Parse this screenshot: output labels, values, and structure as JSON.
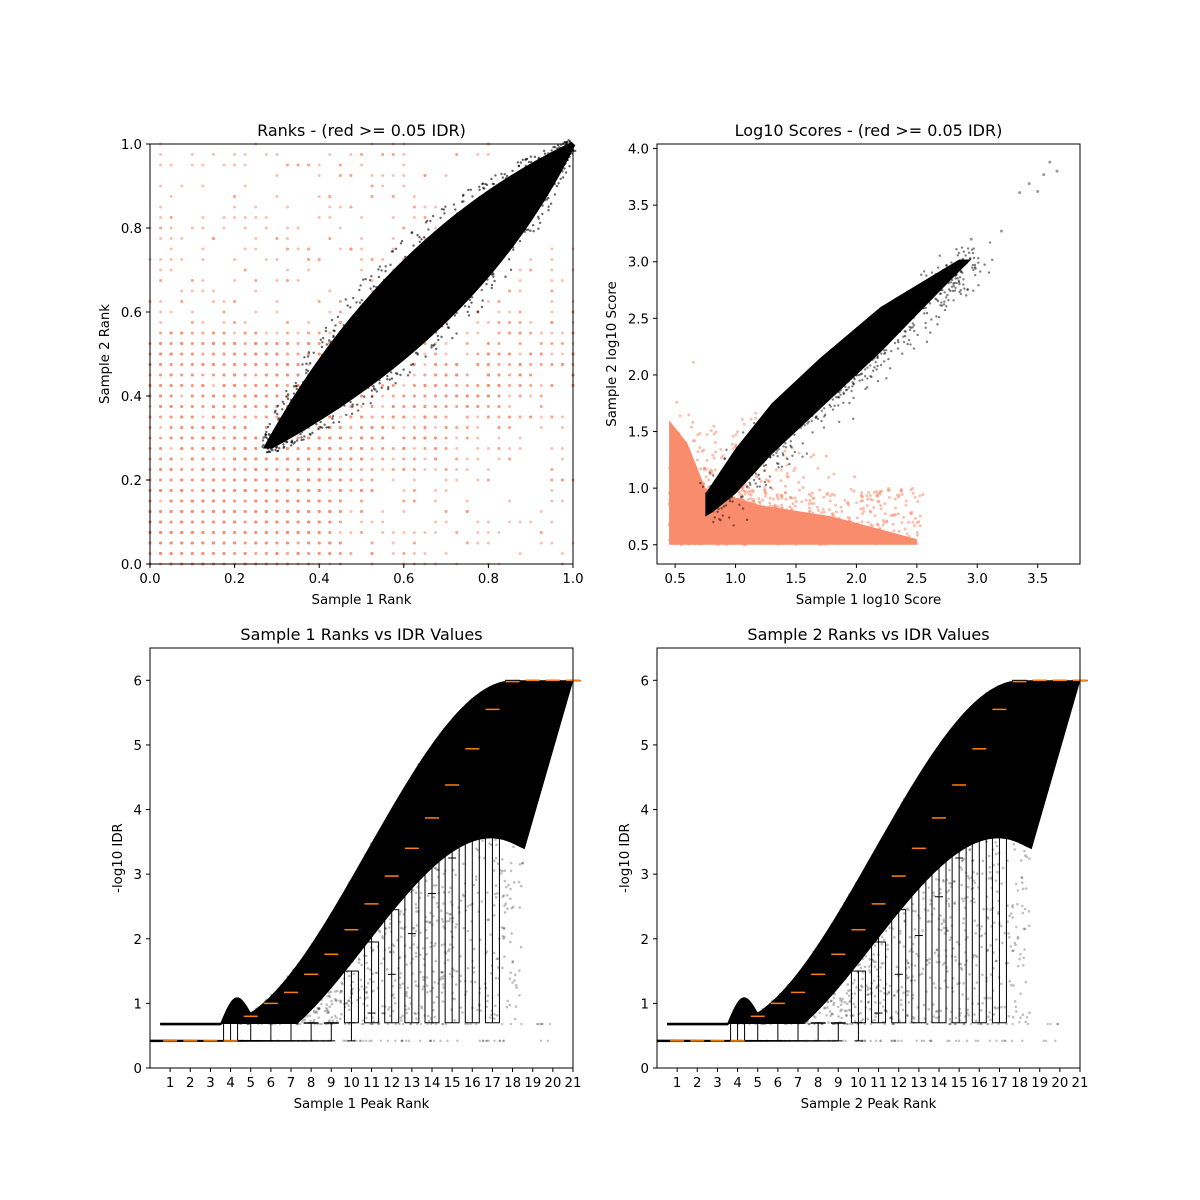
{
  "figure": {
    "background": "#ffffff"
  },
  "colors": {
    "below_threshold": "#fa8c6e",
    "passing": "#000000",
    "median": "#ff7f0e",
    "box": "#000000"
  },
  "chart_data": [
    {
      "id": "ranks",
      "type": "scatter",
      "title": "Ranks - (red >= 0.05 IDR)",
      "xlabel": "Sample 1 Rank",
      "ylabel": "Sample 2 Rank",
      "xlim": [
        0,
        1
      ],
      "ylim": [
        0,
        1
      ],
      "xticks": [
        "0.0",
        "0.2",
        "0.4",
        "0.6",
        "0.8",
        "1.0"
      ],
      "yticks": [
        "0.0",
        "0.2",
        "0.4",
        "0.6",
        "0.8",
        "1.0"
      ],
      "grid": false,
      "series": [
        {
          "color": "#fa8c6e",
          "region": "IDR >= 0.05 (red)",
          "extent_x": [
            0,
            1
          ],
          "extent_y": [
            0,
            1
          ]
        },
        {
          "color": "#000000",
          "region": "IDR < 0.05",
          "tip": [
            0.27,
            0.27
          ],
          "top": [
            1.0,
            1.0
          ]
        }
      ]
    },
    {
      "id": "scores",
      "type": "scatter",
      "title": "Log10 Scores - (red >= 0.05 IDR)",
      "xlabel": "Sample 1 log10 Score",
      "ylabel": "Sample 2 log10 Score",
      "xlim": [
        0.35,
        3.85
      ],
      "ylim": [
        0.33,
        4.04
      ],
      "xticks": [
        "0.5",
        "1.0",
        "1.5",
        "2.0",
        "2.5",
        "3.0",
        "3.5"
      ],
      "yticks": [
        "0.5",
        "1.0",
        "1.5",
        "2.0",
        "2.5",
        "3.0",
        "3.5",
        "4.0"
      ],
      "grid": false,
      "series": [
        {
          "color": "#fa8c6e",
          "region": "IDR >= 0.05 (red)",
          "extent_x": [
            0.45,
            2.5
          ],
          "extent_y": [
            0.5,
            2.6
          ]
        },
        {
          "color": "#000000",
          "region": "IDR < 0.05",
          "extent_x": [
            0.75,
            3.1
          ],
          "extent_y": [
            0.75,
            3.2
          ]
        }
      ],
      "outliers": [
        [
          3.35,
          3.61
        ],
        [
          3.43,
          3.69
        ],
        [
          3.5,
          3.62
        ],
        [
          3.55,
          3.77
        ],
        [
          3.6,
          3.88
        ],
        [
          3.66,
          3.8
        ],
        [
          3.2,
          3.27
        ],
        [
          2.95,
          3.2
        ]
      ]
    },
    {
      "id": "s1_idr",
      "type": "box",
      "title": "Sample 1 Ranks vs IDR Values",
      "xlabel": "Sample 1 Peak Rank",
      "ylabel": "-log10 IDR",
      "xlim": [
        0,
        21
      ],
      "ylim": [
        0,
        6.5
      ],
      "xticks": [
        "1",
        "2",
        "3",
        "4",
        "5",
        "6",
        "7",
        "8",
        "9",
        "10",
        "11",
        "12",
        "13",
        "14",
        "15",
        "16",
        "17",
        "18",
        "19",
        "20",
        "21"
      ],
      "yticks": [
        "0",
        "1",
        "2",
        "3",
        "4",
        "5",
        "6"
      ],
      "categories": [
        1,
        2,
        3,
        4,
        5,
        6,
        7,
        8,
        9,
        10,
        11,
        12,
        13,
        14,
        15,
        16,
        17,
        18,
        19,
        20,
        21
      ],
      "medians": [
        0.42,
        0.42,
        0.42,
        0.42,
        0.8,
        1.0,
        1.17,
        1.45,
        1.76,
        2.14,
        2.54,
        2.97,
        3.4,
        3.87,
        4.38,
        4.94,
        5.55,
        5.98,
        6.0,
        6.0,
        6.0
      ],
      "q1": [
        0.42,
        0.42,
        0.42,
        0.42,
        0.7,
        0.7,
        0.7,
        0.7,
        0.7,
        1.5,
        1.95,
        2.45,
        2.98,
        3.5,
        4.08,
        4.68,
        5.32,
        5.8,
        6.0,
        6.0,
        6.0
      ],
      "q3": [
        0.42,
        0.42,
        0.42,
        0.7,
        0.7,
        0.7,
        0.7,
        0.7,
        0.7,
        0.7,
        0.7,
        0.7,
        0.7,
        0.7,
        0.7,
        0.7,
        0.7,
        6.0,
        6.0,
        6.0,
        6.0
      ],
      "whisker_low": [
        0.42,
        0.42,
        0.42,
        0.42,
        0.42,
        0.42,
        0.42,
        0.42,
        0.42,
        0.42,
        0.85,
        1.45,
        2.08,
        2.7,
        3.25,
        3.88,
        4.67,
        5.7,
        6.0,
        6.0,
        6.0
      ],
      "whisker_high": [
        0.42,
        0.42,
        0.42,
        0.7,
        0.7,
        0.7,
        0.7,
        0.7,
        0.7,
        0.7,
        2.54,
        2.97,
        3.4,
        3.87,
        4.38,
        4.94,
        5.55,
        5.98,
        6.0,
        6.0,
        6.0
      ]
    },
    {
      "id": "s2_idr",
      "type": "box",
      "title": "Sample 2 Ranks vs IDR Values",
      "xlabel": "Sample 2 Peak Rank",
      "ylabel": "-log10 IDR",
      "xlim": [
        0,
        21
      ],
      "ylim": [
        0,
        6.5
      ],
      "xticks": [
        "1",
        "2",
        "3",
        "4",
        "5",
        "6",
        "7",
        "8",
        "9",
        "10",
        "11",
        "12",
        "13",
        "14",
        "15",
        "16",
        "17",
        "18",
        "19",
        "20",
        "21"
      ],
      "yticks": [
        "0",
        "1",
        "2",
        "3",
        "4",
        "5",
        "6"
      ],
      "categories": [
        1,
        2,
        3,
        4,
        5,
        6,
        7,
        8,
        9,
        10,
        11,
        12,
        13,
        14,
        15,
        16,
        17,
        18,
        19,
        20,
        21
      ],
      "medians": [
        0.42,
        0.42,
        0.42,
        0.42,
        0.8,
        1.0,
        1.17,
        1.45,
        1.76,
        2.14,
        2.54,
        2.97,
        3.4,
        3.87,
        4.38,
        4.94,
        5.55,
        5.98,
        6.0,
        6.0,
        6.0
      ],
      "q1": [
        0.42,
        0.42,
        0.42,
        0.42,
        0.7,
        0.7,
        0.7,
        0.7,
        0.7,
        1.5,
        1.95,
        2.45,
        2.98,
        3.5,
        4.08,
        4.68,
        5.32,
        5.8,
        6.0,
        6.0,
        6.0
      ],
      "q3": [
        0.42,
        0.42,
        0.42,
        0.7,
        0.7,
        0.7,
        0.7,
        0.7,
        0.7,
        0.7,
        0.7,
        0.7,
        0.7,
        0.7,
        0.7,
        0.7,
        0.7,
        6.0,
        6.0,
        6.0,
        6.0
      ],
      "whisker_low": [
        0.42,
        0.42,
        0.42,
        0.42,
        0.42,
        0.42,
        0.42,
        0.42,
        0.42,
        0.42,
        0.85,
        1.45,
        2.05,
        2.65,
        3.25,
        3.88,
        4.67,
        5.7,
        6.0,
        6.0,
        6.0
      ],
      "whisker_high": [
        0.42,
        0.42,
        0.42,
        0.7,
        0.7,
        0.7,
        0.7,
        0.7,
        0.7,
        0.7,
        2.54,
        2.97,
        3.4,
        3.87,
        4.38,
        4.94,
        5.55,
        5.98,
        6.0,
        6.0,
        6.0
      ]
    }
  ]
}
